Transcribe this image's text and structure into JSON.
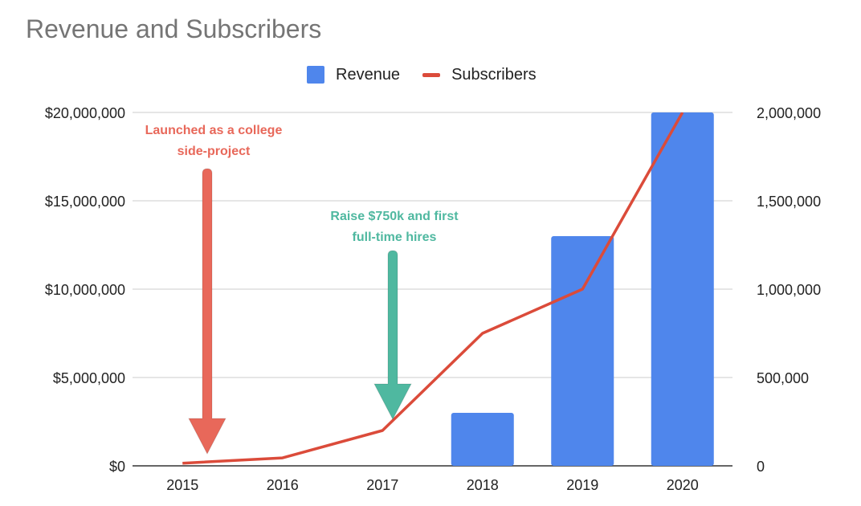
{
  "chart_data": {
    "type": "bar",
    "title": "Revenue and Subscribers",
    "categories": [
      "2015",
      "2016",
      "2017",
      "2018",
      "2019",
      "2020"
    ],
    "series": [
      {
        "name": "Revenue",
        "type": "bar",
        "axis": "left",
        "color": "#4f86ec",
        "values": [
          0,
          0,
          0,
          3000000,
          13000000,
          20000000
        ]
      },
      {
        "name": "Subscribers",
        "type": "line",
        "axis": "right",
        "color": "#db4b3a",
        "values": [
          15000,
          45000,
          200000,
          750000,
          1000000,
          2000000
        ]
      }
    ],
    "y_left": {
      "min": 0,
      "max": 20000000,
      "ticks": [
        0,
        5000000,
        10000000,
        15000000,
        20000000
      ],
      "tick_labels": [
        "$0",
        "$5,000,000",
        "$10,000,000",
        "$15,000,000",
        "$20,000,000"
      ]
    },
    "y_right": {
      "min": 0,
      "max": 2000000,
      "ticks": [
        0,
        500000,
        1000000,
        1500000,
        2000000
      ],
      "tick_labels": [
        "0",
        "500,000",
        "1,000,000",
        "1,500,000",
        "2,000,000"
      ]
    },
    "xlabel": "",
    "ylabel": "",
    "grid": true,
    "legend_position": "top",
    "annotations": [
      {
        "lines": [
          "Launched as a college",
          "side-project"
        ],
        "category": "2015",
        "color": "#e8685a"
      },
      {
        "lines": [
          "Raise $750k and first",
          "full-time hires"
        ],
        "category": "2017",
        "color": "#4fb8a0"
      }
    ]
  }
}
